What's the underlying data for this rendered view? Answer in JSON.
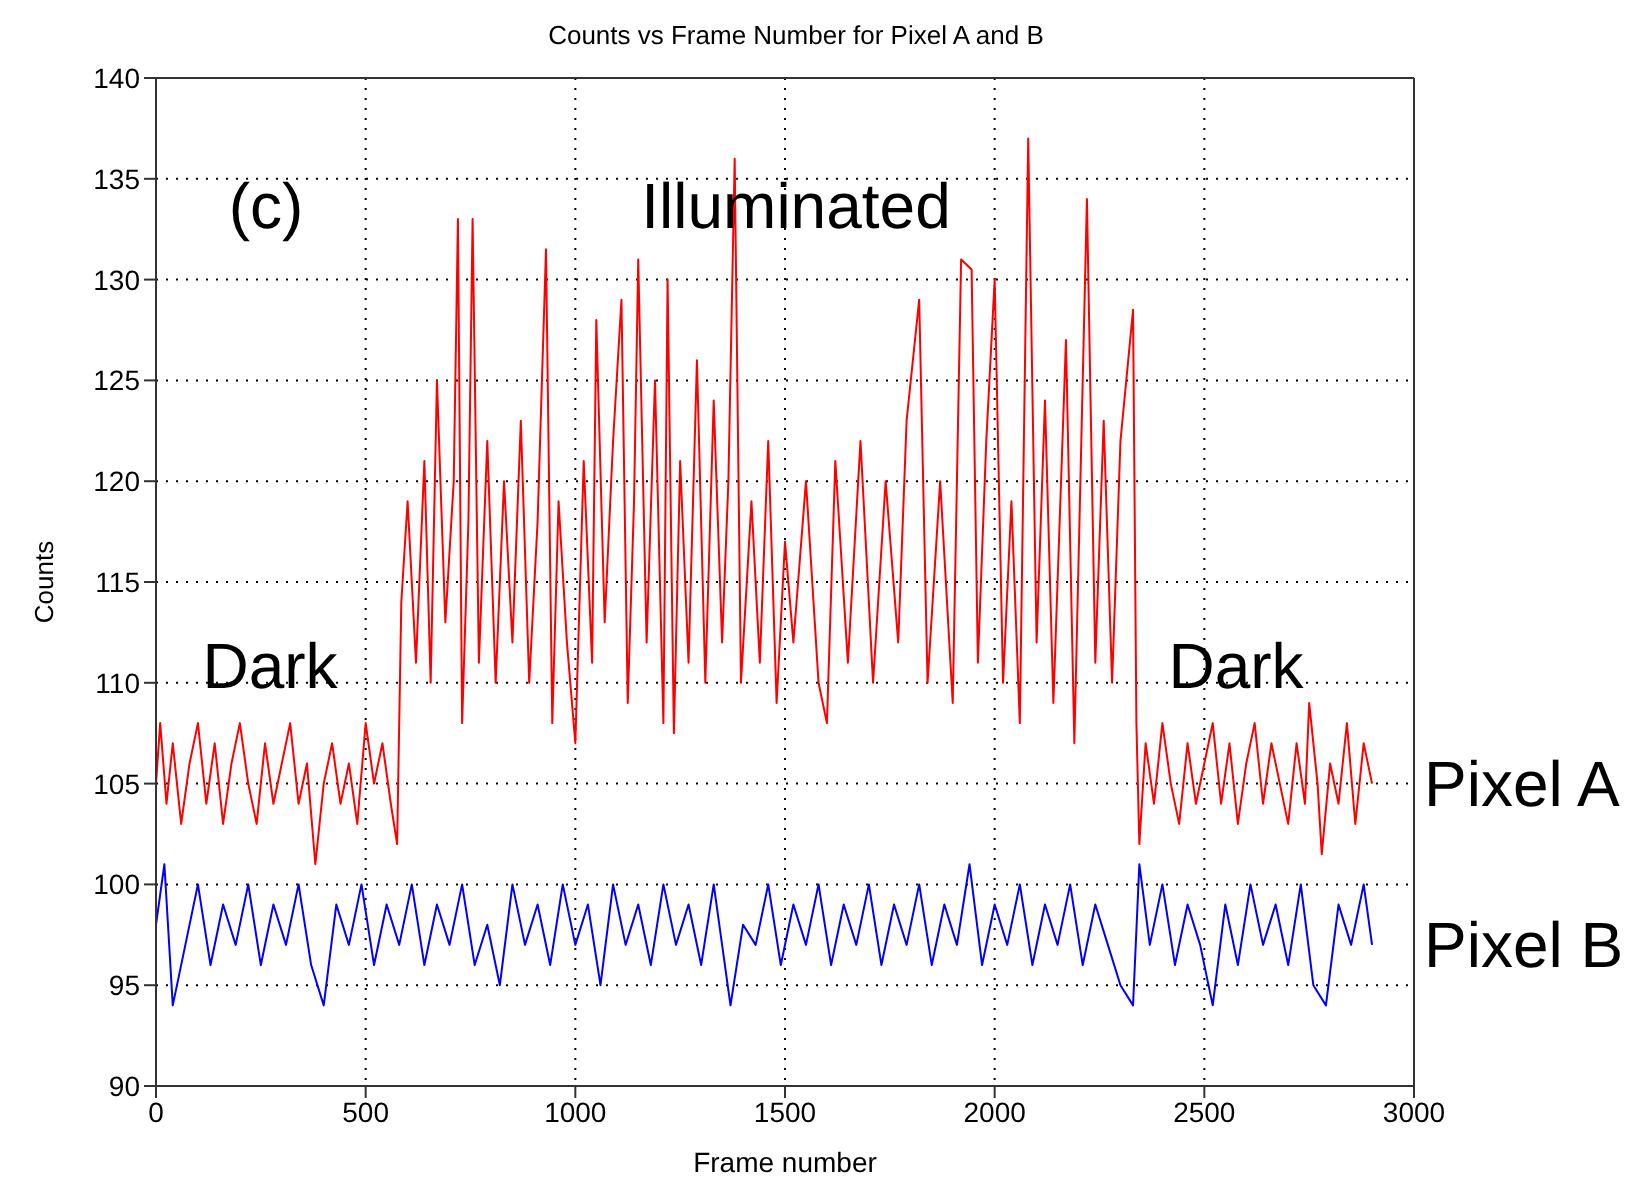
{
  "chart_data": {
    "type": "line",
    "title": "Counts vs Frame Number for Pixel A and B",
    "xlabel": "Frame number",
    "ylabel": "Counts",
    "xlim": [
      0,
      3000
    ],
    "ylim": [
      90,
      140
    ],
    "xticks": [
      0,
      500,
      1000,
      1500,
      2000,
      2500,
      3000
    ],
    "yticks": [
      90,
      95,
      100,
      105,
      110,
      115,
      120,
      125,
      130,
      135,
      140
    ],
    "grid": true,
    "annotations": [
      "(c)",
      "Illuminated",
      "Dark",
      "Dark"
    ],
    "series": [
      {
        "name": "Pixel A",
        "color": "#ff0000",
        "x": [
          0,
          10,
          25,
          40,
          60,
          80,
          100,
          120,
          140,
          160,
          180,
          200,
          220,
          240,
          260,
          280,
          300,
          320,
          340,
          360,
          380,
          400,
          420,
          440,
          460,
          480,
          500,
          520,
          540,
          560,
          575,
          585,
          600,
          620,
          640,
          655,
          670,
          690,
          710,
          720,
          730,
          745,
          755,
          770,
          790,
          810,
          830,
          850,
          870,
          890,
          910,
          930,
          945,
          960,
          980,
          1000,
          1020,
          1040,
          1050,
          1070,
          1090,
          1110,
          1125,
          1140,
          1150,
          1170,
          1190,
          1210,
          1220,
          1235,
          1250,
          1270,
          1290,
          1310,
          1330,
          1350,
          1365,
          1380,
          1395,
          1420,
          1440,
          1460,
          1480,
          1500,
          1520,
          1550,
          1580,
          1600,
          1620,
          1650,
          1680,
          1710,
          1740,
          1770,
          1790,
          1820,
          1840,
          1870,
          1900,
          1920,
          1945,
          1960,
          1980,
          2000,
          2020,
          2040,
          2060,
          2080,
          2100,
          2120,
          2140,
          2170,
          2190,
          2220,
          2240,
          2260,
          2280,
          2300,
          2330,
          2338,
          2345,
          2360,
          2380,
          2400,
          2420,
          2440,
          2460,
          2480,
          2500,
          2520,
          2540,
          2560,
          2580,
          2600,
          2620,
          2640,
          2660,
          2680,
          2700,
          2720,
          2740,
          2750,
          2770,
          2780,
          2800,
          2820,
          2840,
          2860,
          2880,
          2900
        ],
        "values": [
          105,
          108,
          104,
          107,
          103,
          106,
          108,
          104,
          107,
          103,
          106,
          108,
          105,
          103,
          107,
          104,
          106,
          108,
          104,
          106,
          101,
          105,
          107,
          104,
          106,
          103,
          108,
          105,
          107,
          104,
          102,
          114,
          119,
          111,
          121,
          110,
          125,
          113,
          120,
          133,
          108,
          118,
          133,
          111,
          122,
          110,
          120,
          112,
          123,
          110,
          118,
          131.5,
          108,
          119,
          112,
          107,
          121,
          111,
          128,
          113,
          122,
          129,
          109,
          119,
          131,
          112,
          125,
          108,
          130,
          107.5,
          121,
          111,
          126,
          110,
          124,
          112,
          120,
          136,
          110,
          119,
          111,
          122,
          109,
          117,
          112,
          120,
          110,
          108,
          121,
          111,
          122,
          110,
          120,
          112,
          123,
          129,
          110,
          120,
          109,
          131,
          130.5,
          111,
          122,
          130,
          110,
          119,
          108,
          137,
          112,
          124,
          109,
          127,
          107,
          134,
          111,
          123,
          110,
          122,
          128.5,
          108,
          102,
          107,
          104,
          108,
          105,
          103,
          107,
          104,
          106,
          108,
          104,
          107,
          103,
          106,
          108,
          104,
          107,
          105,
          103,
          107,
          104,
          109,
          105,
          101.5,
          106,
          104,
          108,
          103,
          107,
          105
        ]
      },
      {
        "name": "Pixel B",
        "color": "#0000ff",
        "x": [
          0,
          20,
          40,
          70,
          100,
          130,
          160,
          190,
          220,
          250,
          280,
          310,
          340,
          370,
          400,
          430,
          460,
          490,
          520,
          550,
          580,
          610,
          640,
          670,
          700,
          730,
          760,
          790,
          820,
          850,
          880,
          910,
          940,
          970,
          1000,
          1030,
          1060,
          1090,
          1120,
          1150,
          1180,
          1210,
          1240,
          1270,
          1300,
          1330,
          1370,
          1400,
          1430,
          1460,
          1490,
          1520,
          1550,
          1580,
          1610,
          1640,
          1670,
          1700,
          1730,
          1760,
          1790,
          1820,
          1850,
          1880,
          1910,
          1940,
          1970,
          2000,
          2030,
          2060,
          2090,
          2120,
          2150,
          2180,
          2210,
          2240,
          2270,
          2300,
          2330,
          2345,
          2370,
          2400,
          2430,
          2460,
          2490,
          2520,
          2550,
          2580,
          2610,
          2640,
          2670,
          2700,
          2730,
          2760,
          2790,
          2820,
          2850,
          2880,
          2900
        ],
        "values": [
          98,
          101,
          94,
          97,
          100,
          96,
          99,
          97,
          100,
          96,
          99,
          97,
          100,
          96,
          94,
          99,
          97,
          100,
          96,
          99,
          97,
          100,
          96,
          99,
          97,
          100,
          96,
          98,
          95,
          100,
          97,
          99,
          96,
          100,
          97,
          99,
          95,
          100,
          97,
          99,
          96,
          100,
          97,
          99,
          96,
          100,
          94,
          98,
          97,
          100,
          96,
          99,
          97,
          100,
          96,
          99,
          97,
          100,
          96,
          99,
          97,
          100,
          96,
          99,
          97,
          101,
          96,
          99,
          97,
          100,
          96,
          99,
          97,
          100,
          96,
          99,
          97,
          95,
          94,
          101,
          97,
          100,
          96,
          99,
          97,
          94,
          99,
          96,
          100,
          97,
          99,
          96,
          100,
          95,
          94,
          99,
          97,
          100,
          97
        ]
      }
    ]
  }
}
